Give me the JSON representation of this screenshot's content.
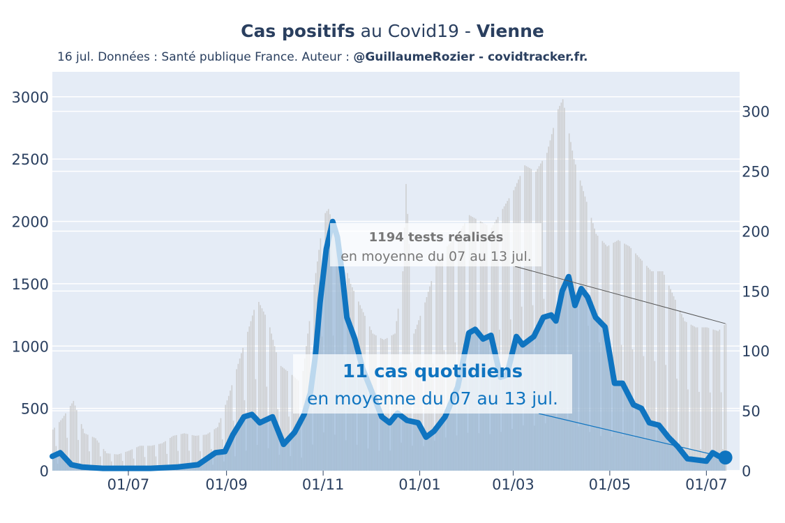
{
  "header": {
    "title_bold_1": "Cas positifs",
    "title_mid": " au Covid19 - ",
    "title_bold_2": "Vienne",
    "subtitle_text": "16 jul. Données : Santé publique France. Auteur : ",
    "subtitle_bold": "@GuillaumeRozier - covidtracker.fr."
  },
  "colors": {
    "cases_line": "#0f74c0",
    "cases_fill": "#8db3d6",
    "tests_bar": "#c8c8c8",
    "plot_bg": "#e5ecf6",
    "grid": "#ffffff"
  },
  "annotations": {
    "tests": {
      "bold": "1194 tests réalisés",
      "text": "en moyenne du 07 au 13 jul."
    },
    "cases": {
      "bold": "11 cas quotidiens",
      "text": "en moyenne du 07 au 13 jul."
    }
  },
  "chart_data": {
    "type": "line",
    "x_ticks": [
      "01/07",
      "01/09",
      "01/11",
      "01/01",
      "01/03",
      "01/05",
      "01/07"
    ],
    "x_tick_dates": [
      "2020-07-01",
      "2020-09-01",
      "2020-11-01",
      "2021-01-01",
      "2021-03-01",
      "2021-05-01",
      "2021-07-01"
    ],
    "xlim": [
      "2020-05-14",
      "2021-07-22"
    ],
    "y_left": {
      "ticks": [
        0,
        500,
        1000,
        1500,
        2000,
        2500,
        3000
      ],
      "range": [
        0,
        3200
      ],
      "axis_for": "tests"
    },
    "y_right": {
      "ticks": [
        0,
        50,
        100,
        150,
        200,
        250,
        300
      ],
      "range": [
        0,
        333
      ],
      "axis_for": "cases"
    },
    "series": [
      {
        "type": "bar",
        "axis": "left",
        "points": [
          [
            "2020-05-14",
            330
          ],
          [
            "2020-05-20",
            420
          ],
          [
            "2020-05-27",
            560
          ],
          [
            "2020-06-03",
            300
          ],
          [
            "2020-06-10",
            260
          ],
          [
            "2020-06-17",
            140
          ],
          [
            "2020-06-24",
            130
          ],
          [
            "2020-07-01",
            160
          ],
          [
            "2020-07-08",
            200
          ],
          [
            "2020-07-15",
            200
          ],
          [
            "2020-07-22",
            220
          ],
          [
            "2020-07-29",
            280
          ],
          [
            "2020-08-05",
            300
          ],
          [
            "2020-08-12",
            280
          ],
          [
            "2020-08-19",
            290
          ],
          [
            "2020-08-26",
            350
          ],
          [
            "2020-09-02",
            600
          ],
          [
            "2020-09-09",
            900
          ],
          [
            "2020-09-16",
            1200
          ],
          [
            "2020-09-20",
            1380
          ],
          [
            "2020-09-27",
            1200
          ],
          [
            "2020-10-04",
            850
          ],
          [
            "2020-10-11",
            780
          ],
          [
            "2020-10-18",
            700
          ],
          [
            "2020-10-25",
            1400
          ],
          [
            "2020-11-01",
            2050
          ],
          [
            "2020-11-04",
            2100
          ],
          [
            "2020-11-11",
            1800
          ],
          [
            "2020-11-18",
            1500
          ],
          [
            "2020-11-25",
            1300
          ],
          [
            "2020-12-02",
            1100
          ],
          [
            "2020-12-09",
            1050
          ],
          [
            "2020-12-16",
            1100
          ],
          [
            "2020-12-21",
            1600
          ],
          [
            "2020-12-23",
            2300
          ],
          [
            "2020-12-28",
            1100
          ],
          [
            "2021-01-04",
            1350
          ],
          [
            "2021-01-11",
            1650
          ],
          [
            "2021-01-18",
            1800
          ],
          [
            "2021-01-25",
            1900
          ],
          [
            "2021-02-01",
            2050
          ],
          [
            "2021-02-08",
            2000
          ],
          [
            "2021-02-15",
            1950
          ],
          [
            "2021-02-22",
            2100
          ],
          [
            "2021-03-01",
            2250
          ],
          [
            "2021-03-08",
            2450
          ],
          [
            "2021-03-15",
            2400
          ],
          [
            "2021-03-22",
            2550
          ],
          [
            "2021-03-29",
            2900
          ],
          [
            "2021-04-01",
            2980
          ],
          [
            "2021-04-08",
            2500
          ],
          [
            "2021-04-15",
            2200
          ],
          [
            "2021-04-22",
            1900
          ],
          [
            "2021-04-29",
            1800
          ],
          [
            "2021-05-06",
            1850
          ],
          [
            "2021-05-13",
            1800
          ],
          [
            "2021-05-20",
            1700
          ],
          [
            "2021-05-27",
            1600
          ],
          [
            "2021-06-03",
            1600
          ],
          [
            "2021-06-10",
            1400
          ],
          [
            "2021-06-17",
            1200
          ],
          [
            "2021-06-24",
            1150
          ],
          [
            "2021-07-01",
            1150
          ],
          [
            "2021-07-08",
            1120
          ],
          [
            "2021-07-13",
            1180
          ]
        ]
      },
      {
        "type": "line",
        "axis": "right",
        "points": [
          [
            "2020-05-14",
            12
          ],
          [
            "2020-05-19",
            15
          ],
          [
            "2020-05-26",
            5
          ],
          [
            "2020-06-02",
            3
          ],
          [
            "2020-06-15",
            2
          ],
          [
            "2020-07-01",
            2
          ],
          [
            "2020-07-15",
            2
          ],
          [
            "2020-08-01",
            3
          ],
          [
            "2020-08-14",
            5
          ],
          [
            "2020-08-25",
            15
          ],
          [
            "2020-08-31",
            16
          ],
          [
            "2020-09-05",
            30
          ],
          [
            "2020-09-12",
            45
          ],
          [
            "2020-09-17",
            47
          ],
          [
            "2020-09-22",
            40
          ],
          [
            "2020-09-30",
            45
          ],
          [
            "2020-10-07",
            22
          ],
          [
            "2020-10-14",
            32
          ],
          [
            "2020-10-20",
            47
          ],
          [
            "2020-10-24",
            65
          ],
          [
            "2020-10-27",
            95
          ],
          [
            "2020-10-30",
            140
          ],
          [
            "2020-11-03",
            185
          ],
          [
            "2020-11-07",
            208
          ],
          [
            "2020-11-10",
            195
          ],
          [
            "2020-11-13",
            165
          ],
          [
            "2020-11-16",
            128
          ],
          [
            "2020-11-21",
            110
          ],
          [
            "2020-11-26",
            85
          ],
          [
            "2020-12-02",
            65
          ],
          [
            "2020-12-08",
            45
          ],
          [
            "2020-12-13",
            40
          ],
          [
            "2020-12-18",
            48
          ],
          [
            "2020-12-24",
            42
          ],
          [
            "2020-12-31",
            40
          ],
          [
            "2021-01-05",
            28
          ],
          [
            "2021-01-10",
            33
          ],
          [
            "2021-01-17",
            45
          ],
          [
            "2021-01-25",
            70
          ],
          [
            "2021-02-01",
            115
          ],
          [
            "2021-02-05",
            118
          ],
          [
            "2021-02-10",
            110
          ],
          [
            "2021-02-15",
            113
          ],
          [
            "2021-02-21",
            78
          ],
          [
            "2021-02-25",
            80
          ],
          [
            "2021-03-03",
            112
          ],
          [
            "2021-03-07",
            105
          ],
          [
            "2021-03-14",
            112
          ],
          [
            "2021-03-20",
            128
          ],
          [
            "2021-03-25",
            130
          ],
          [
            "2021-03-28",
            125
          ],
          [
            "2021-04-01",
            150
          ],
          [
            "2021-04-05",
            162
          ],
          [
            "2021-04-09",
            138
          ],
          [
            "2021-04-13",
            152
          ],
          [
            "2021-04-17",
            145
          ],
          [
            "2021-04-22",
            128
          ],
          [
            "2021-04-28",
            120
          ],
          [
            "2021-05-04",
            73
          ],
          [
            "2021-05-09",
            73
          ],
          [
            "2021-05-16",
            55
          ],
          [
            "2021-05-21",
            52
          ],
          [
            "2021-05-26",
            40
          ],
          [
            "2021-06-01",
            38
          ],
          [
            "2021-06-07",
            28
          ],
          [
            "2021-06-13",
            20
          ],
          [
            "2021-06-19",
            10
          ],
          [
            "2021-07-01",
            8
          ],
          [
            "2021-07-05",
            15
          ],
          [
            "2021-07-09",
            12
          ],
          [
            "2021-07-13",
            11
          ]
        ]
      }
    ]
  }
}
